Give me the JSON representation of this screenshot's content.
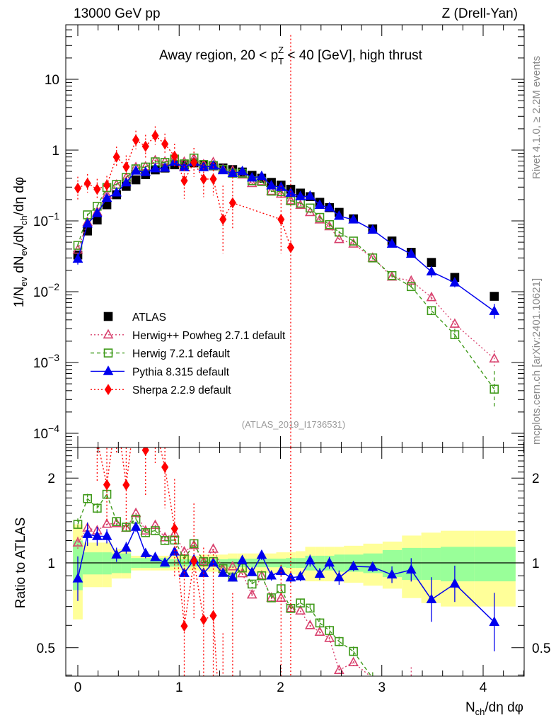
{
  "header": {
    "left": "13000 GeV pp",
    "right": "Z (Drell-Yan)"
  },
  "side_text": {
    "top": "Rivet 4.1.0, ≥ 2.2M events",
    "bottom": "mcplots.cern.ch [arXiv:2401.10621]"
  },
  "watermark": "(ATLAS_2019_I1736531)",
  "chart_data": {
    "type": "scatter",
    "title": {
      "pre": "Away region, 20 < p",
      "sub": "T",
      "sup": "Z",
      "post": " < 40 [GeV], high thrust"
    },
    "xlabel": [
      {
        "t": "N"
      },
      {
        "t": "ch",
        "s": "sub"
      },
      {
        "t": "/dη dφ"
      }
    ],
    "ylabel": [
      {
        "t": "1/N"
      },
      {
        "t": "ev",
        "s": "sub"
      },
      {
        "t": " dN"
      },
      {
        "t": "ev",
        "s": "sub"
      },
      {
        "t": "/dN"
      },
      {
        "t": "ch",
        "s": "sub"
      },
      {
        "t": "/dη dφ"
      }
    ],
    "ratio_ylabel": "Ratio to ATLAS",
    "xlim": [
      -0.12,
      4.4
    ],
    "ylim": [
      6.3e-05,
      59
    ],
    "yscale": "log",
    "ratio_ylim": [
      0.396,
      2.57
    ],
    "x_ticks": [
      {
        "v": 0,
        "label": "0"
      },
      {
        "v": 1,
        "label": "1"
      },
      {
        "v": 2,
        "label": "2"
      },
      {
        "v": 3,
        "label": "3"
      },
      {
        "v": 4,
        "label": "4"
      }
    ],
    "y_ticks": [
      {
        "v": 10,
        "base": "10",
        "exp": ""
      },
      {
        "v": 1,
        "base": "1",
        "exp": ""
      },
      {
        "v": 0.1,
        "base": "10",
        "exp": "−1"
      },
      {
        "v": 0.01,
        "base": "10",
        "exp": "−2"
      },
      {
        "v": 0.001,
        "base": "10",
        "exp": "−3"
      },
      {
        "v": 0.0001,
        "base": "10",
        "exp": "−4"
      }
    ],
    "ratio_ticks": [
      {
        "v": 2,
        "label": "2"
      },
      {
        "v": 1,
        "label": "1"
      },
      {
        "v": 0.5,
        "label": "0.5"
      }
    ],
    "x": [
      0,
      0.0955,
      0.191,
      0.2865,
      0.382,
      0.4775,
      0.573,
      0.6685,
      0.764,
      0.8595,
      0.955,
      1.0505,
      1.146,
      1.2415,
      1.337,
      1.4325,
      1.528,
      1.6235,
      1.719,
      1.8145,
      1.91,
      2.0055,
      2.101,
      2.1965,
      2.292,
      2.3875,
      2.483,
      2.5785,
      2.72,
      2.91,
      3.1,
      3.29,
      3.49,
      3.72,
      4.11
    ],
    "bin_edges": [
      -0.048,
      0.048,
      0.143,
      0.239,
      0.334,
      0.43,
      0.525,
      0.621,
      0.716,
      0.812,
      0.907,
      1.003,
      1.098,
      1.194,
      1.289,
      1.385,
      1.48,
      1.576,
      1.671,
      1.767,
      1.862,
      1.958,
      2.053,
      2.149,
      2.244,
      2.34,
      2.435,
      2.531,
      2.626,
      2.817,
      3.008,
      3.199,
      3.39,
      3.581,
      3.915,
      4.32
    ],
    "band": {
      "stat": [
        0.2,
        0.09,
        0.09,
        0.09,
        0.08,
        0.08,
        0.04,
        0.04,
        0.04,
        0.04,
        0.03,
        0.03,
        0.03,
        0.03,
        0.03,
        0.03,
        0.035,
        0.035,
        0.035,
        0.035,
        0.035,
        0.035,
        0.04,
        0.04,
        0.06,
        0.06,
        0.06,
        0.07,
        0.07,
        0.08,
        0.11,
        0.13,
        0.13,
        0.14,
        0.14
      ],
      "total": [
        0.37,
        0.18,
        0.18,
        0.18,
        0.12,
        0.12,
        0.06,
        0.06,
        0.06,
        0.06,
        0.06,
        0.06,
        0.06,
        0.07,
        0.07,
        0.07,
        0.08,
        0.08,
        0.08,
        0.08,
        0.08,
        0.09,
        0.09,
        0.1,
        0.14,
        0.14,
        0.14,
        0.14,
        0.15,
        0.17,
        0.19,
        0.25,
        0.28,
        0.3,
        0.3
      ]
    },
    "series": [
      {
        "name": "ATLAS",
        "color": "#000000",
        "marker": "square-filled",
        "line": "none",
        "values": [
          0.033,
          0.072,
          0.103,
          0.169,
          0.234,
          0.307,
          0.38,
          0.45,
          0.525,
          0.558,
          0.62,
          0.62,
          0.66,
          0.62,
          0.6,
          0.56,
          0.53,
          0.49,
          0.44,
          0.4,
          0.35,
          0.32,
          0.28,
          0.247,
          0.22,
          0.183,
          0.154,
          0.132,
          0.107,
          0.077,
          0.052,
          0.036,
          0.0259,
          0.0159,
          0.0086
        ]
      },
      {
        "name": "Herwig++ Powheg 2.7.1 default",
        "color": "#d8416e",
        "marker": "triangle-open",
        "line": "dotted",
        "values": [
          0.0389,
          0.0958,
          0.134,
          0.232,
          0.323,
          0.408,
          0.57,
          0.585,
          0.714,
          0.686,
          0.787,
          0.679,
          0.762,
          0.626,
          0.672,
          0.532,
          0.514,
          0.449,
          0.339,
          0.36,
          0.263,
          0.24,
          0.193,
          0.167,
          0.132,
          0.104,
          0.0832,
          0.0549,
          0.0474,
          0.03,
          0.0162,
          0.0142,
          0.0083,
          0.0035,
          0.00113
        ],
        "err_factor": [
          1.05,
          1.03,
          1.03,
          1.03,
          1.03,
          1.03,
          1.03,
          1.03,
          1.03,
          1.03,
          1.03,
          1.03,
          1.03,
          1.03,
          1.03,
          1.03,
          1.03,
          1.03,
          1.03,
          1.03,
          1.03,
          1.03,
          1.03,
          1.03,
          1.03,
          1.03,
          1.04,
          1.04,
          1.04,
          1.05,
          1.06,
          1.08,
          1.1,
          1.15,
          1.3
        ]
      },
      {
        "name": "Herwig 7.2.1 default",
        "color": "#3f9a1a",
        "marker": "square-open",
        "line": "dashed",
        "values": [
          0.0452,
          0.1217,
          0.161,
          0.296,
          0.328,
          0.411,
          0.543,
          0.576,
          0.683,
          0.67,
          0.747,
          0.639,
          0.772,
          0.626,
          0.606,
          0.534,
          0.472,
          0.47,
          0.37,
          0.36,
          0.263,
          0.259,
          0.193,
          0.178,
          0.152,
          0.112,
          0.0886,
          0.0694,
          0.0519,
          0.03,
          0.0169,
          0.0118,
          0.0054,
          0.00247,
          0.00042
        ],
        "err_factor": [
          1.05,
          1.04,
          1.04,
          1.04,
          1.03,
          1.03,
          1.03,
          1.03,
          1.03,
          1.03,
          1.03,
          1.03,
          1.03,
          1.03,
          1.03,
          1.03,
          1.03,
          1.03,
          1.03,
          1.03,
          1.03,
          1.03,
          1.03,
          1.03,
          1.03,
          1.04,
          1.04,
          1.04,
          1.04,
          1.05,
          1.06,
          1.08,
          1.15,
          1.2,
          1.8
        ]
      },
      {
        "name": "Pythia 8.315 default",
        "color": "#0000ee",
        "marker": "triangle-filled",
        "line": "solid",
        "values": [
          0.029,
          0.091,
          0.128,
          0.21,
          0.25,
          0.347,
          0.509,
          0.486,
          0.549,
          0.558,
          0.679,
          0.57,
          0.677,
          0.57,
          0.6,
          0.515,
          0.469,
          0.5,
          0.407,
          0.426,
          0.315,
          0.299,
          0.248,
          0.221,
          0.224,
          0.167,
          0.154,
          0.117,
          0.104,
          0.0744,
          0.0472,
          0.034,
          0.0192,
          0.0134,
          0.0053
        ],
        "err_factor": [
          1.2,
          1.1,
          1.08,
          1.06,
          1.06,
          1.05,
          1.04,
          1.04,
          1.03,
          1.03,
          1.03,
          1.03,
          1.03,
          1.03,
          1.03,
          1.03,
          1.03,
          1.03,
          1.03,
          1.04,
          1.04,
          1.04,
          1.04,
          1.04,
          1.05,
          1.05,
          1.05,
          1.06,
          1.04,
          1.04,
          1.07,
          1.1,
          1.2,
          1.16,
          1.27
        ]
      },
      {
        "name": "Sherpa 2.2.9 default",
        "color": "#ff0000",
        "marker": "diamond-filled",
        "line": "dotted",
        "values": [
          0.29,
          0.34,
          0.28,
          0.32,
          0.8,
          0.58,
          1.39,
          1.13,
          1.6,
          1.22,
          0.82,
          0.37,
          0.67,
          0.39,
          0.39,
          0.105,
          0.18,
          null,
          null,
          null,
          null,
          0.105,
          0.042,
          null,
          null,
          null,
          null,
          null,
          null,
          null,
          null,
          null,
          null,
          null,
          null
        ],
        "err_factor": [
          1.45,
          1.35,
          1.4,
          1.35,
          1.4,
          1.45,
          1.35,
          1.45,
          1.35,
          1.4,
          1.5,
          1.8,
          1.6,
          1.8,
          1.7,
          3.0,
          2.3,
          null,
          null,
          null,
          null,
          3.0,
          1000,
          null,
          null,
          null,
          null,
          null,
          null,
          null,
          null,
          null,
          null,
          null,
          null
        ]
      }
    ]
  }
}
